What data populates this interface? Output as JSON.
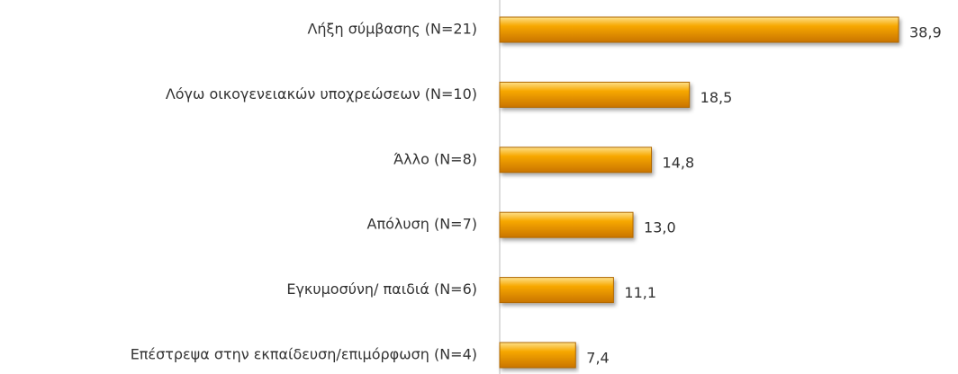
{
  "chart_data": {
    "type": "hbar",
    "categories": [
      "Λήξη σύμβασης (Ν=21)",
      "Λόγω οικογενειακών υποχρεώσεων (Ν=10)",
      "Άλλο (Ν=8)",
      "Απόλυση (Ν=7)",
      "Εγκυμοσύνη/ παιδιά (Ν=6)",
      "Επέστρεψα στην εκπαίδευση/επιμόρφωση (Ν=4)"
    ],
    "values": [
      38.9,
      18.5,
      14.8,
      13.0,
      11.1,
      7.4
    ],
    "value_labels": [
      "38,9",
      "18,5",
      "14,8",
      "13,0",
      "11,1",
      "7,4"
    ],
    "color": "#f5a000"
  }
}
